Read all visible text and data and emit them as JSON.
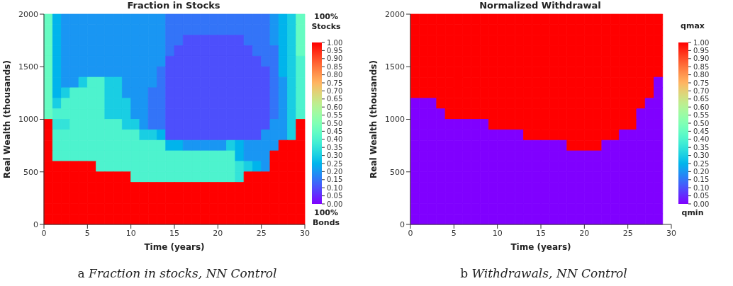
{
  "chart_data": [
    {
      "type": "heatmap",
      "title": "Fraction in Stocks",
      "xlabel": "Time (years)",
      "ylabel": "Real Wealth (thousands)",
      "clabel": "100% Stocks",
      "annotations": [
        "100% Bonds",
        "a Fraction in stocks, NN Control"
      ],
      "x": [
        0.5,
        1.5,
        2.5,
        3.5,
        4.5,
        5.5,
        6.5,
        7.5,
        8.5,
        9.5,
        10.5,
        11.5,
        12.5,
        13.5,
        14.5,
        15.5,
        16.5,
        17.5,
        18.5,
        19.5,
        20.5,
        21.5,
        22.5,
        23.5,
        24.5,
        25.5,
        26.5,
        27.5,
        28.5,
        29.5
      ],
      "xlim": [
        0,
        30
      ],
      "xticks": [
        0,
        5,
        10,
        15,
        20,
        25,
        30
      ],
      "ylim": [
        0,
        2000
      ],
      "yticks": [
        0,
        500,
        1000,
        1500,
        2000
      ],
      "clim": [
        0,
        1
      ],
      "cticks": [
        {
          "value": 0,
          "label": "0.00"
        },
        {
          "value": 0.05,
          "label": "0.05"
        },
        {
          "value": 0.1,
          "label": "0.10"
        },
        {
          "value": 0.15,
          "label": "0.15"
        },
        {
          "value": 0.2,
          "label": "0.20"
        },
        {
          "value": 0.25,
          "label": "0.25"
        },
        {
          "value": 0.3,
          "label": "0.30"
        },
        {
          "value": 0.35,
          "label": "0.35"
        },
        {
          "value": 0.4,
          "label": "0.40"
        },
        {
          "value": 0.45,
          "label": "0.45"
        },
        {
          "value": 0.5,
          "label": "0.50"
        },
        {
          "value": 0.55,
          "label": "0.55"
        },
        {
          "value": 0.6,
          "label": "0.60"
        },
        {
          "value": 0.65,
          "label": "0.65"
        },
        {
          "value": 0.7,
          "label": "0.70"
        },
        {
          "value": 0.75,
          "label": "0.75"
        },
        {
          "value": 0.8,
          "label": "0.80"
        },
        {
          "value": 0.85,
          "label": "0.85"
        },
        {
          "value": 0.9,
          "label": "0.90"
        },
        {
          "value": 0.95,
          "label": "0.95"
        },
        {
          "value": 1,
          "label": "1.00"
        }
      ],
      "cells": [
        [
          0.45,
          0.25,
          0.2,
          0.2,
          0.2,
          0.2,
          0.2,
          0.2,
          0.2,
          0.2,
          0.2,
          0.2,
          0.2,
          0.2,
          0.15,
          0.15,
          0.15,
          0.15,
          0.15,
          0.15,
          0.15,
          0.15,
          0.15,
          0.15,
          0.15,
          0.15,
          0.2,
          0.25,
          0.3,
          0.45
        ],
        [
          0.45,
          0.25,
          0.2,
          0.2,
          0.2,
          0.2,
          0.2,
          0.2,
          0.2,
          0.2,
          0.2,
          0.2,
          0.2,
          0.2,
          0.15,
          0.15,
          0.15,
          0.15,
          0.15,
          0.15,
          0.15,
          0.15,
          0.15,
          0.15,
          0.15,
          0.15,
          0.2,
          0.25,
          0.3,
          0.45
        ],
        [
          0.45,
          0.25,
          0.2,
          0.2,
          0.2,
          0.2,
          0.2,
          0.2,
          0.2,
          0.2,
          0.2,
          0.2,
          0.2,
          0.2,
          0.15,
          0.15,
          0.1,
          0.1,
          0.1,
          0.1,
          0.1,
          0.1,
          0.1,
          0.15,
          0.15,
          0.15,
          0.2,
          0.25,
          0.3,
          0.45
        ],
        [
          0.45,
          0.25,
          0.2,
          0.2,
          0.2,
          0.2,
          0.2,
          0.2,
          0.2,
          0.2,
          0.2,
          0.2,
          0.2,
          0.2,
          0.15,
          0.1,
          0.1,
          0.1,
          0.1,
          0.1,
          0.1,
          0.1,
          0.1,
          0.1,
          0.15,
          0.15,
          0.15,
          0.25,
          0.3,
          0.45
        ],
        [
          0.45,
          0.25,
          0.2,
          0.2,
          0.2,
          0.2,
          0.2,
          0.2,
          0.2,
          0.2,
          0.2,
          0.2,
          0.2,
          0.2,
          0.1,
          0.1,
          0.1,
          0.1,
          0.1,
          0.1,
          0.1,
          0.1,
          0.1,
          0.1,
          0.1,
          0.15,
          0.15,
          0.25,
          0.3,
          0.4
        ],
        [
          0.45,
          0.25,
          0.2,
          0.2,
          0.2,
          0.2,
          0.2,
          0.2,
          0.2,
          0.2,
          0.2,
          0.2,
          0.2,
          0.15,
          0.1,
          0.1,
          0.1,
          0.1,
          0.1,
          0.1,
          0.1,
          0.1,
          0.1,
          0.1,
          0.1,
          0.1,
          0.15,
          0.25,
          0.3,
          0.4
        ],
        [
          0.45,
          0.25,
          0.2,
          0.2,
          0.3,
          0.4,
          0.4,
          0.3,
          0.3,
          0.2,
          0.2,
          0.2,
          0.2,
          0.15,
          0.1,
          0.1,
          0.1,
          0.1,
          0.1,
          0.1,
          0.1,
          0.1,
          0.1,
          0.1,
          0.1,
          0.1,
          0.15,
          0.2,
          0.3,
          0.4
        ],
        [
          0.45,
          0.25,
          0.3,
          0.4,
          0.4,
          0.4,
          0.4,
          0.3,
          0.3,
          0.2,
          0.2,
          0.2,
          0.15,
          0.15,
          0.1,
          0.1,
          0.1,
          0.1,
          0.1,
          0.1,
          0.1,
          0.1,
          0.1,
          0.1,
          0.1,
          0.1,
          0.15,
          0.2,
          0.3,
          0.4
        ],
        [
          0.45,
          0.3,
          0.4,
          0.4,
          0.4,
          0.4,
          0.4,
          0.3,
          0.3,
          0.3,
          0.2,
          0.2,
          0.15,
          0.15,
          0.1,
          0.1,
          0.1,
          0.1,
          0.1,
          0.1,
          0.1,
          0.1,
          0.1,
          0.1,
          0.1,
          0.1,
          0.15,
          0.2,
          0.3,
          0.4
        ],
        [
          0.45,
          0.4,
          0.4,
          0.4,
          0.4,
          0.4,
          0.4,
          0.3,
          0.3,
          0.3,
          0.2,
          0.2,
          0.15,
          0.15,
          0.1,
          0.1,
          0.1,
          0.1,
          0.1,
          0.1,
          0.1,
          0.1,
          0.1,
          0.1,
          0.1,
          0.1,
          0.15,
          0.2,
          0.3,
          0.4
        ],
        [
          1,
          0.35,
          0.35,
          0.4,
          0.4,
          0.4,
          0.4,
          0.4,
          0.4,
          0.3,
          0.3,
          0.2,
          0.15,
          0.15,
          0.1,
          0.1,
          0.1,
          0.1,
          0.1,
          0.1,
          0.1,
          0.1,
          0.1,
          0.1,
          0.1,
          0.1,
          0.2,
          0.2,
          0.3,
          1
        ],
        [
          1,
          0.4,
          0.4,
          0.4,
          0.4,
          0.4,
          0.4,
          0.4,
          0.4,
          0.4,
          0.4,
          0.3,
          0.3,
          0.25,
          0.1,
          0.1,
          0.1,
          0.1,
          0.1,
          0.1,
          0.1,
          0.1,
          0.1,
          0.1,
          0.1,
          0.2,
          0.2,
          0.2,
          0.3,
          1
        ],
        [
          1,
          0.4,
          0.4,
          0.4,
          0.4,
          0.4,
          0.4,
          0.4,
          0.4,
          0.4,
          0.4,
          0.4,
          0.4,
          0.4,
          0.25,
          0.25,
          0.2,
          0.2,
          0.2,
          0.2,
          0.2,
          0.3,
          0.25,
          0.2,
          0.2,
          0.2,
          0.2,
          1,
          1,
          1
        ],
        [
          1,
          0.4,
          0.4,
          0.4,
          0.4,
          0.4,
          0.4,
          0.4,
          0.4,
          0.4,
          0.4,
          0.4,
          0.4,
          0.4,
          0.4,
          0.4,
          0.4,
          0.4,
          0.4,
          0.4,
          0.4,
          0.4,
          0.25,
          0.2,
          0.2,
          0.2,
          1,
          1,
          1,
          1
        ],
        [
          1,
          1,
          1,
          1,
          1,
          1,
          0.4,
          0.4,
          0.4,
          0.4,
          0.4,
          0.4,
          0.4,
          0.4,
          0.4,
          0.4,
          0.4,
          0.4,
          0.4,
          0.4,
          0.4,
          0.4,
          0.35,
          0.3,
          0.25,
          0.2,
          1,
          1,
          1,
          1
        ],
        [
          1,
          1,
          1,
          1,
          1,
          1,
          1,
          1,
          1,
          1,
          0.4,
          0.4,
          0.4,
          0.4,
          0.4,
          0.4,
          0.4,
          0.4,
          0.4,
          0.4,
          0.4,
          0.4,
          0.35,
          1,
          1,
          1,
          1,
          1,
          1,
          1
        ],
        [
          1,
          1,
          1,
          1,
          1,
          1,
          1,
          1,
          1,
          1,
          1,
          1,
          1,
          1,
          1,
          1,
          1,
          1,
          1,
          1,
          1,
          1,
          1,
          1,
          1,
          1,
          1,
          1,
          1,
          1
        ],
        [
          1,
          1,
          1,
          1,
          1,
          1,
          1,
          1,
          1,
          1,
          1,
          1,
          1,
          1,
          1,
          1,
          1,
          1,
          1,
          1,
          1,
          1,
          1,
          1,
          1,
          1,
          1,
          1,
          1,
          1
        ],
        [
          1,
          1,
          1,
          1,
          1,
          1,
          1,
          1,
          1,
          1,
          1,
          1,
          1,
          1,
          1,
          1,
          1,
          1,
          1,
          1,
          1,
          1,
          1,
          1,
          1,
          1,
          1,
          1,
          1,
          1
        ],
        [
          1,
          1,
          1,
          1,
          1,
          1,
          1,
          1,
          1,
          1,
          1,
          1,
          1,
          1,
          1,
          1,
          1,
          1,
          1,
          1,
          1,
          1,
          1,
          1,
          1,
          1,
          1,
          1,
          1,
          1
        ]
      ]
    },
    {
      "type": "heatmap",
      "title": "Normalized Withdrawal",
      "xlabel": "Time (years)",
      "ylabel": "Real Wealth (thousands)",
      "clabel": "qmax",
      "annotations": [
        "qmin",
        "b Withdrawals, NN Control"
      ],
      "x": [
        0.5,
        1.5,
        2.5,
        3.5,
        4.5,
        5.5,
        6.5,
        7.5,
        8.5,
        9.5,
        10.5,
        11.5,
        12.5,
        13.5,
        14.5,
        15.5,
        16.5,
        17.5,
        18.5,
        19.5,
        20.5,
        21.5,
        22.5,
        23.5,
        24.5,
        25.5,
        26.5,
        27.5,
        28.5
      ],
      "xlim": [
        0,
        30
      ],
      "xticks": [
        0,
        5,
        10,
        15,
        20,
        25,
        30
      ],
      "ylim": [
        0,
        2000
      ],
      "yticks": [
        0,
        500,
        1000,
        1500,
        2000
      ],
      "clim": [
        0,
        1
      ],
      "cticks": [
        {
          "value": 0,
          "label": "0.00"
        },
        {
          "value": 0.05,
          "label": "0.05"
        },
        {
          "value": 0.1,
          "label": "0.10"
        },
        {
          "value": 0.15,
          "label": "0.15"
        },
        {
          "value": 0.2,
          "label": "0.20"
        },
        {
          "value": 0.25,
          "label": "0.25"
        },
        {
          "value": 0.3,
          "label": "0.30"
        },
        {
          "value": 0.35,
          "label": "0.35"
        },
        {
          "value": 0.4,
          "label": "0.40"
        },
        {
          "value": 0.45,
          "label": "0.45"
        },
        {
          "value": 0.5,
          "label": "0.50"
        },
        {
          "value": 0.55,
          "label": "0.55"
        },
        {
          "value": 0.6,
          "label": "0.60"
        },
        {
          "value": 0.65,
          "label": "0.65"
        },
        {
          "value": 0.7,
          "label": "0.70"
        },
        {
          "value": 0.75,
          "label": "0.75"
        },
        {
          "value": 0.8,
          "label": "0.80"
        },
        {
          "value": 0.85,
          "label": "0.85"
        },
        {
          "value": 0.9,
          "label": "0.90"
        },
        {
          "value": 0.95,
          "label": "0.95"
        },
        {
          "value": 1,
          "label": "1.00"
        }
      ],
      "cells": [
        [
          1,
          1,
          1,
          1,
          1,
          1,
          1,
          1,
          1,
          1,
          1,
          1,
          1,
          1,
          1,
          1,
          1,
          1,
          1,
          1,
          1,
          1,
          1,
          1,
          1,
          1,
          1,
          1,
          1
        ],
        [
          1,
          1,
          1,
          1,
          1,
          1,
          1,
          1,
          1,
          1,
          1,
          1,
          1,
          1,
          1,
          1,
          1,
          1,
          1,
          1,
          1,
          1,
          1,
          1,
          1,
          1,
          1,
          1,
          1
        ],
        [
          1,
          1,
          1,
          1,
          1,
          1,
          1,
          1,
          1,
          1,
          1,
          1,
          1,
          1,
          1,
          1,
          1,
          1,
          1,
          1,
          1,
          1,
          1,
          1,
          1,
          1,
          1,
          1,
          1
        ],
        [
          1,
          1,
          1,
          1,
          1,
          1,
          1,
          1,
          1,
          1,
          1,
          1,
          1,
          1,
          1,
          1,
          1,
          1,
          1,
          1,
          1,
          1,
          1,
          1,
          1,
          1,
          1,
          1,
          1
        ],
        [
          1,
          1,
          1,
          1,
          1,
          1,
          1,
          1,
          1,
          1,
          1,
          1,
          1,
          1,
          1,
          1,
          1,
          1,
          1,
          1,
          1,
          1,
          1,
          1,
          1,
          1,
          1,
          1,
          1
        ],
        [
          1,
          1,
          1,
          1,
          1,
          1,
          1,
          1,
          1,
          1,
          1,
          1,
          1,
          1,
          1,
          1,
          1,
          1,
          1,
          1,
          1,
          1,
          1,
          1,
          1,
          1,
          1,
          1,
          1
        ],
        [
          1,
          1,
          1,
          1,
          1,
          1,
          1,
          1,
          1,
          1,
          1,
          1,
          1,
          1,
          1,
          1,
          1,
          1,
          1,
          1,
          1,
          1,
          1,
          1,
          1,
          1,
          1,
          1,
          0
        ],
        [
          1,
          1,
          1,
          1,
          1,
          1,
          1,
          1,
          1,
          1,
          1,
          1,
          1,
          1,
          1,
          1,
          1,
          1,
          1,
          1,
          1,
          1,
          1,
          1,
          1,
          1,
          1,
          1,
          0
        ],
        [
          0,
          0,
          0,
          1,
          1,
          1,
          1,
          1,
          1,
          1,
          1,
          1,
          1,
          1,
          1,
          1,
          1,
          1,
          1,
          1,
          1,
          1,
          1,
          1,
          1,
          1,
          1,
          0,
          0
        ],
        [
          0,
          0,
          0,
          0,
          1,
          1,
          1,
          1,
          1,
          1,
          1,
          1,
          1,
          1,
          1,
          1,
          1,
          1,
          1,
          1,
          1,
          1,
          1,
          1,
          1,
          1,
          0,
          0,
          0
        ],
        [
          0,
          0,
          0,
          0,
          0,
          0,
          0,
          0,
          0,
          1,
          1,
          1,
          1,
          1,
          1,
          1,
          1,
          1,
          1,
          1,
          1,
          1,
          1,
          1,
          1,
          1,
          0,
          0,
          0
        ],
        [
          0,
          0,
          0,
          0,
          0,
          0,
          0,
          0,
          0,
          0,
          0,
          0,
          0,
          1,
          1,
          1,
          1,
          1,
          1,
          1,
          1,
          1,
          1,
          1,
          0,
          0,
          0,
          0,
          0
        ],
        [
          0,
          0,
          0,
          0,
          0,
          0,
          0,
          0,
          0,
          0,
          0,
          0,
          0,
          0,
          0,
          0,
          0,
          0,
          1,
          1,
          1,
          1,
          0,
          0,
          0,
          0,
          0,
          0,
          0
        ],
        [
          0,
          0,
          0,
          0,
          0,
          0,
          0,
          0,
          0,
          0,
          0,
          0,
          0,
          0,
          0,
          0,
          0,
          0,
          0,
          0,
          0,
          0,
          0,
          0,
          0,
          0,
          0,
          0,
          0
        ],
        [
          0,
          0,
          0,
          0,
          0,
          0,
          0,
          0,
          0,
          0,
          0,
          0,
          0,
          0,
          0,
          0,
          0,
          0,
          0,
          0,
          0,
          0,
          0,
          0,
          0,
          0,
          0,
          0,
          0
        ],
        [
          0,
          0,
          0,
          0,
          0,
          0,
          0,
          0,
          0,
          0,
          0,
          0,
          0,
          0,
          0,
          0,
          0,
          0,
          0,
          0,
          0,
          0,
          0,
          0,
          0,
          0,
          0,
          0,
          0
        ],
        [
          0,
          0,
          0,
          0,
          0,
          0,
          0,
          0,
          0,
          0,
          0,
          0,
          0,
          0,
          0,
          0,
          0,
          0,
          0,
          0,
          0,
          0,
          0,
          0,
          0,
          0,
          0,
          0,
          0
        ],
        [
          0,
          0,
          0,
          0,
          0,
          0,
          0,
          0,
          0,
          0,
          0,
          0,
          0,
          0,
          0,
          0,
          0,
          0,
          0,
          0,
          0,
          0,
          0,
          0,
          0,
          0,
          0,
          0,
          0
        ],
        [
          0,
          0,
          0,
          0,
          0,
          0,
          0,
          0,
          0,
          0,
          0,
          0,
          0,
          0,
          0,
          0,
          0,
          0,
          0,
          0,
          0,
          0,
          0,
          0,
          0,
          0,
          0,
          0,
          0
        ],
        [
          0,
          0,
          0,
          0,
          0,
          0,
          0,
          0,
          0,
          0,
          0,
          0,
          0,
          0,
          0,
          0,
          0,
          0,
          0,
          0,
          0,
          0,
          0,
          0,
          0,
          0,
          0,
          0,
          0
        ]
      ]
    }
  ]
}
